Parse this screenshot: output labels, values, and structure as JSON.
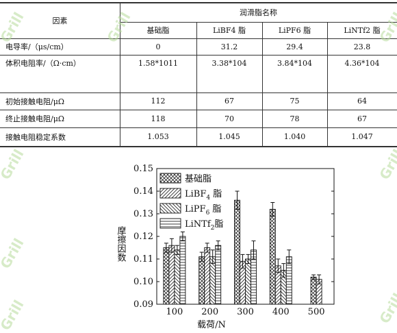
{
  "table": {
    "corner_label": "因素",
    "group_header": "润滑脂名称",
    "columns": [
      "基础脂",
      "LiBF4 脂",
      "LiPF6 脂",
      "LiNTf2 脂"
    ],
    "rows": [
      {
        "label": "电导率/（μs/cm）",
        "values": [
          "0",
          "31.2",
          "29.4",
          "23.8"
        ]
      },
      {
        "label": "体积电阻率/（Ω·cm）",
        "values": [
          "1.58*1011",
          "3.38*104",
          "3.84*104",
          "4.36*104"
        ]
      },
      {
        "label": "初始接触电阻/μΩ",
        "values": [
          "112",
          "67",
          "75",
          "64"
        ]
      },
      {
        "label": "终止接触电阻/μΩ",
        "values": [
          "118",
          "70",
          "78",
          "67"
        ]
      },
      {
        "label": "接触电阻稳定系数",
        "values": [
          "1.053",
          "1.045",
          "1.040",
          "1.047"
        ]
      }
    ]
  },
  "chart_data": {
    "type": "bar",
    "xlabel": "载荷/N",
    "ylabel": "摩擦因数",
    "ylim": [
      0.09,
      0.15
    ],
    "yticks": [
      "0.09",
      "0.10",
      "0.11",
      "0.12",
      "0.13",
      "0.14",
      "0.15"
    ],
    "categories": [
      "100",
      "200",
      "300",
      "400",
      "500"
    ],
    "series": [
      {
        "name": "基础脂",
        "legend": {
          "base": "基础脂",
          "sub": "",
          "tail": ""
        },
        "pattern": "cross",
        "values": [
          0.115,
          0.111,
          0.136,
          0.132,
          0.102
        ],
        "errors": [
          0.002,
          0.002,
          0.004,
          0.003,
          0.001
        ]
      },
      {
        "name": "LiBF4脂",
        "legend": {
          "base": "LiBF",
          "sub": "4",
          "tail": " 脂"
        },
        "pattern": "diag",
        "values": [
          0.116,
          0.115,
          0.109,
          0.107,
          0.101
        ],
        "errors": [
          0.003,
          0.002,
          0.003,
          0.003,
          0.002
        ]
      },
      {
        "name": "LiPF6脂",
        "legend": {
          "base": "LiPF",
          "sub": "6",
          "tail": " 脂"
        },
        "pattern": "backdiag",
        "values": [
          0.114,
          0.111,
          0.11,
          0.105,
          null
        ],
        "errors": [
          0.002,
          0.003,
          0.002,
          0.003,
          null
        ]
      },
      {
        "name": "LiNTf2脂",
        "legend": {
          "base": "LiNTf",
          "sub": "2",
          "tail": "脂"
        },
        "pattern": "horiz",
        "values": [
          0.12,
          0.116,
          0.114,
          0.111,
          null
        ],
        "errors": [
          0.002,
          0.002,
          0.004,
          0.003,
          null
        ]
      }
    ],
    "legend_position": "top-left inside",
    "grid": false
  },
  "watermark_text": "Grill"
}
